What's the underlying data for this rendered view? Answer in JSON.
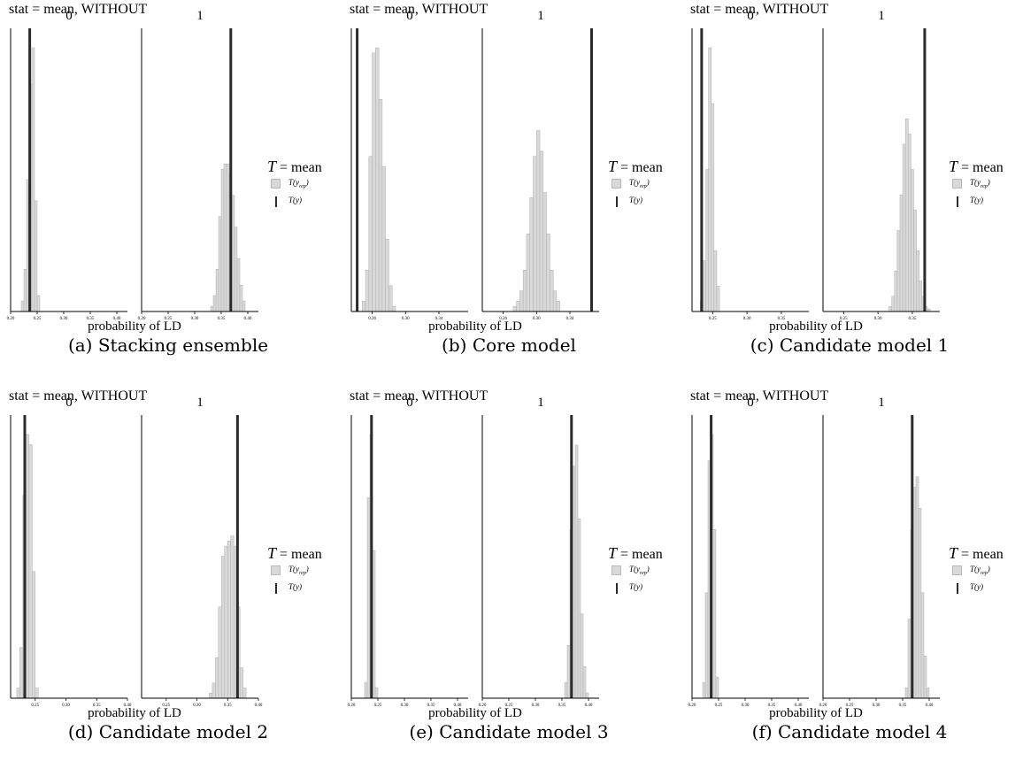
{
  "figure": {
    "colors": {
      "bar_fill": "#d9d9d9",
      "bar_stroke": "#b0b0b0",
      "observed_line": "#2b2b2b",
      "axis": "#000000"
    },
    "subfigures": [
      {
        "caption": "(a) Stacking ensemble",
        "stat_title": "stat = mean, WITHOUT",
        "xlabel": "probability of LD",
        "legend": {
          "title_symbol": "T",
          "title_rest": " = mean",
          "items": [
            {
              "symbol": "T(y",
              "sub": "rep",
              "close": ")"
            },
            {
              "symbol": "T(y)",
              "sub": "",
              "close": ""
            }
          ]
        },
        "chart_data": {
          "type": "bar",
          "panels": [
            {
              "facet_label": "0",
              "xlim": [
                0.2,
                0.42
              ],
              "ticks": [
                "0.20",
                "0.25",
                "0.30",
                "0.35",
                "0.40"
              ],
              "tick_values": [
                0.2,
                0.25,
                0.3,
                0.35,
                0.4
              ],
              "bin_width": 0.005,
              "observed": 0.236,
              "bins": [
                [
                  0.22,
                  2
                ],
                [
                  0.225,
                  8
                ],
                [
                  0.23,
                  25
                ],
                [
                  0.235,
                  43
                ],
                [
                  0.24,
                  50
                ],
                [
                  0.245,
                  21
                ],
                [
                  0.25,
                  3
                ]
              ]
            },
            {
              "facet_label": "1",
              "xlim": [
                0.2,
                0.42
              ],
              "ticks": [
                "0.20",
                "0.25",
                "0.30",
                "0.35",
                "0.40"
              ],
              "tick_values": [
                0.2,
                0.25,
                0.3,
                0.35,
                0.4
              ],
              "bin_width": 0.005,
              "observed": 0.368,
              "bins": [
                [
                  0.33,
                  1
                ],
                [
                  0.335,
                  3
                ],
                [
                  0.34,
                  8
                ],
                [
                  0.345,
                  18
                ],
                [
                  0.35,
                  27
                ],
                [
                  0.355,
                  28
                ],
                [
                  0.36,
                  28
                ],
                [
                  0.365,
                  26
                ],
                [
                  0.37,
                  22
                ],
                [
                  0.375,
                  16
                ],
                [
                  0.38,
                  10
                ],
                [
                  0.385,
                  5
                ],
                [
                  0.39,
                  2
                ]
              ]
            }
          ]
        }
      },
      {
        "caption": "(b) Core model",
        "stat_title": "stat = mean, WITHOUT",
        "xlabel": "probability of LD",
        "legend": {
          "title_symbol": "T",
          "title_rest": " = mean",
          "items": [
            {
              "symbol": "T(y",
              "sub": "rep",
              "close": ")"
            },
            {
              "symbol": "T(y)",
              "sub": "",
              "close": ""
            }
          ]
        },
        "chart_data": {
          "type": "bar",
          "panels": [
            {
              "facet_label": "0",
              "xlim": [
                0.235,
                0.375
              ],
              "ticks": [
                "0.26",
                "0.30",
                "0.34"
              ],
              "tick_values": [
                0.26,
                0.3,
                0.34
              ],
              "bin_width": 0.004,
              "observed": 0.242,
              "bins": [
                [
                  0.248,
                  2
                ],
                [
                  0.252,
                  8
                ],
                [
                  0.256,
                  30
                ],
                [
                  0.26,
                  50
                ],
                [
                  0.264,
                  51
                ],
                [
                  0.268,
                  41
                ],
                [
                  0.272,
                  28
                ],
                [
                  0.276,
                  14
                ],
                [
                  0.28,
                  5
                ],
                [
                  0.284,
                  1
                ]
              ]
            },
            {
              "facet_label": "1",
              "xlim": [
                0.235,
                0.375
              ],
              "ticks": [
                "0.26",
                "0.30",
                "0.34"
              ],
              "tick_values": [
                0.26,
                0.3,
                0.34
              ],
              "bin_width": 0.004,
              "observed": 0.366,
              "bins": [
                [
                  0.272,
                  1
                ],
                [
                  0.276,
                  2
                ],
                [
                  0.28,
                  4
                ],
                [
                  0.284,
                  8
                ],
                [
                  0.288,
                  15
                ],
                [
                  0.292,
                  22
                ],
                [
                  0.296,
                  30
                ],
                [
                  0.3,
                  35
                ],
                [
                  0.304,
                  31
                ],
                [
                  0.308,
                  23
                ],
                [
                  0.312,
                  15
                ],
                [
                  0.316,
                  8
                ],
                [
                  0.32,
                  4
                ],
                [
                  0.324,
                  2
                ]
              ]
            }
          ]
        }
      },
      {
        "caption": "(c) Candidate model 1",
        "stat_title": "stat = mean, WITHOUT",
        "xlabel": "probability of LD",
        "legend": {
          "title_symbol": "T",
          "title_rest": " = mean",
          "items": [
            {
              "symbol": "T(y",
              "sub": "rep",
              "close": ")"
            },
            {
              "symbol": "T(y)",
              "sub": "",
              "close": ""
            }
          ]
        },
        "chart_data": {
          "type": "bar",
          "panels": [
            {
              "facet_label": "0",
              "xlim": [
                0.22,
                0.39
              ],
              "ticks": [
                "0.25",
                "0.30",
                "0.35"
              ],
              "tick_values": [
                0.25,
                0.3,
                0.35
              ],
              "bin_width": 0.004,
              "observed": 0.234,
              "bins": [
                [
                  0.232,
                  2
                ],
                [
                  0.236,
                  10
                ],
                [
                  0.24,
                  28
                ],
                [
                  0.244,
                  52
                ],
                [
                  0.248,
                  41
                ],
                [
                  0.252,
                  12
                ],
                [
                  0.256,
                  5
                ]
              ]
            },
            {
              "facet_label": "1",
              "xlim": [
                0.22,
                0.39
              ],
              "ticks": [
                "0.25",
                "0.30",
                "0.35"
              ],
              "tick_values": [
                0.25,
                0.3,
                0.35
              ],
              "bin_width": 0.004,
              "observed": 0.368,
              "bins": [
                [
                  0.316,
                  1
                ],
                [
                  0.32,
                  3
                ],
                [
                  0.324,
                  8
                ],
                [
                  0.328,
                  16
                ],
                [
                  0.332,
                  23
                ],
                [
                  0.336,
                  33
                ],
                [
                  0.34,
                  38
                ],
                [
                  0.344,
                  35
                ],
                [
                  0.348,
                  28
                ],
                [
                  0.352,
                  20
                ],
                [
                  0.356,
                  12
                ],
                [
                  0.36,
                  6
                ],
                [
                  0.364,
                  3
                ],
                [
                  0.368,
                  1
                ],
                [
                  0.372,
                  0.5
                ]
              ]
            }
          ]
        }
      },
      {
        "caption": "(d) Candidate model 2",
        "stat_title": "stat = mean, WITHOUT",
        "xlabel": "probability of LD",
        "legend": {
          "title_symbol": "T",
          "title_rest": " = mean",
          "items": [
            {
              "symbol": "T(y",
              "sub": "rep",
              "close": ")"
            },
            {
              "symbol": "T(y)",
              "sub": "",
              "close": ""
            }
          ]
        },
        "chart_data": {
          "type": "bar",
          "panels": [
            {
              "facet_label": "0",
              "xlim": [
                0.21,
                0.4
              ],
              "ticks": [
                "0.25",
                "0.30",
                "0.35",
                "0.40"
              ],
              "tick_values": [
                0.25,
                0.3,
                0.35,
                0.4
              ],
              "bin_width": 0.005,
              "observed": 0.233,
              "bins": [
                [
                  0.22,
                  2
                ],
                [
                  0.225,
                  10
                ],
                [
                  0.23,
                  40
                ],
                [
                  0.235,
                  52
                ],
                [
                  0.24,
                  50
                ],
                [
                  0.245,
                  25
                ],
                [
                  0.25,
                  2
                ]
              ]
            },
            {
              "facet_label": "1",
              "xlim": [
                0.21,
                0.4
              ],
              "ticks": [
                "0.25",
                "0.30",
                "0.35",
                "0.40"
              ],
              "tick_values": [
                0.25,
                0.3,
                0.35,
                0.4
              ],
              "bin_width": 0.005,
              "observed": 0.366,
              "bins": [
                [
                  0.32,
                  1
                ],
                [
                  0.325,
                  3
                ],
                [
                  0.33,
                  8
                ],
                [
                  0.335,
                  18
                ],
                [
                  0.34,
                  28
                ],
                [
                  0.345,
                  30
                ],
                [
                  0.35,
                  31
                ],
                [
                  0.355,
                  32
                ],
                [
                  0.36,
                  30
                ],
                [
                  0.365,
                  18
                ],
                [
                  0.37,
                  6
                ],
                [
                  0.375,
                  2
                ]
              ]
            }
          ]
        }
      },
      {
        "caption": "(e) Candidate model 3",
        "stat_title": "stat = mean, WITHOUT",
        "xlabel": "probability of LD",
        "legend": {
          "title_symbol": "T",
          "title_rest": " = mean",
          "items": [
            {
              "symbol": "T(y",
              "sub": "rep",
              "close": ")"
            },
            {
              "symbol": "T(y)",
              "sub": "",
              "close": ""
            }
          ]
        },
        "chart_data": {
          "type": "bar",
          "panels": [
            {
              "facet_label": "0",
              "xlim": [
                0.2,
                0.42
              ],
              "ticks": [
                "0.20",
                "0.25",
                "0.30",
                "0.35",
                "0.40"
              ],
              "tick_values": [
                0.2,
                0.25,
                0.3,
                0.35,
                0.4
              ],
              "bin_width": 0.005,
              "observed": 0.238,
              "bins": [
                [
                  0.225,
                  3
                ],
                [
                  0.23,
                  38
                ],
                [
                  0.235,
                  50
                ],
                [
                  0.24,
                  28
                ],
                [
                  0.245,
                  2
                ]
              ]
            },
            {
              "facet_label": "1",
              "xlim": [
                0.2,
                0.42
              ],
              "ticks": [
                "0.20",
                "0.25",
                "0.30",
                "0.35",
                "0.40"
              ],
              "tick_values": [
                0.2,
                0.25,
                0.3,
                0.35,
                0.4
              ],
              "bin_width": 0.005,
              "observed": 0.368,
              "bins": [
                [
                  0.355,
                  3
                ],
                [
                  0.36,
                  10
                ],
                [
                  0.365,
                  32
                ],
                [
                  0.37,
                  44
                ],
                [
                  0.375,
                  48
                ],
                [
                  0.38,
                  34
                ],
                [
                  0.385,
                  16
                ],
                [
                  0.39,
                  6
                ],
                [
                  0.395,
                  1
                ]
              ]
            }
          ]
        }
      },
      {
        "caption": "(f) Candidate model 4",
        "stat_title": "stat = mean, WITHOUT",
        "xlabel": "probability of LD",
        "legend": {
          "title_symbol": "T",
          "title_rest": " = mean",
          "items": [
            {
              "symbol": "T(y",
              "sub": "rep",
              "close": ")"
            },
            {
              "symbol": "T(y)",
              "sub": "",
              "close": ""
            }
          ]
        },
        "chart_data": {
          "type": "bar",
          "panels": [
            {
              "facet_label": "0",
              "xlim": [
                0.2,
                0.42
              ],
              "ticks": [
                "0.20",
                "0.25",
                "0.30",
                "0.35",
                "0.40"
              ],
              "tick_values": [
                0.2,
                0.25,
                0.3,
                0.35,
                0.4
              ],
              "bin_width": 0.005,
              "observed": 0.236,
              "bins": [
                [
                  0.22,
                  3
                ],
                [
                  0.225,
                  20
                ],
                [
                  0.23,
                  45
                ],
                [
                  0.235,
                  50
                ],
                [
                  0.24,
                  32
                ],
                [
                  0.245,
                  4
                ]
              ]
            },
            {
              "facet_label": "1",
              "xlim": [
                0.2,
                0.42
              ],
              "ticks": [
                "0.20",
                "0.25",
                "0.30",
                "0.35",
                "0.40"
              ],
              "tick_values": [
                0.2,
                0.25,
                0.3,
                0.35,
                0.4
              ],
              "bin_width": 0.005,
              "observed": 0.368,
              "bins": [
                [
                  0.355,
                  2
                ],
                [
                  0.36,
                  15
                ],
                [
                  0.365,
                  32
                ],
                [
                  0.37,
                  40
                ],
                [
                  0.375,
                  42
                ],
                [
                  0.38,
                  36
                ],
                [
                  0.385,
                  20
                ],
                [
                  0.39,
                  8
                ],
                [
                  0.395,
                  2
                ]
              ]
            }
          ]
        }
      }
    ]
  }
}
